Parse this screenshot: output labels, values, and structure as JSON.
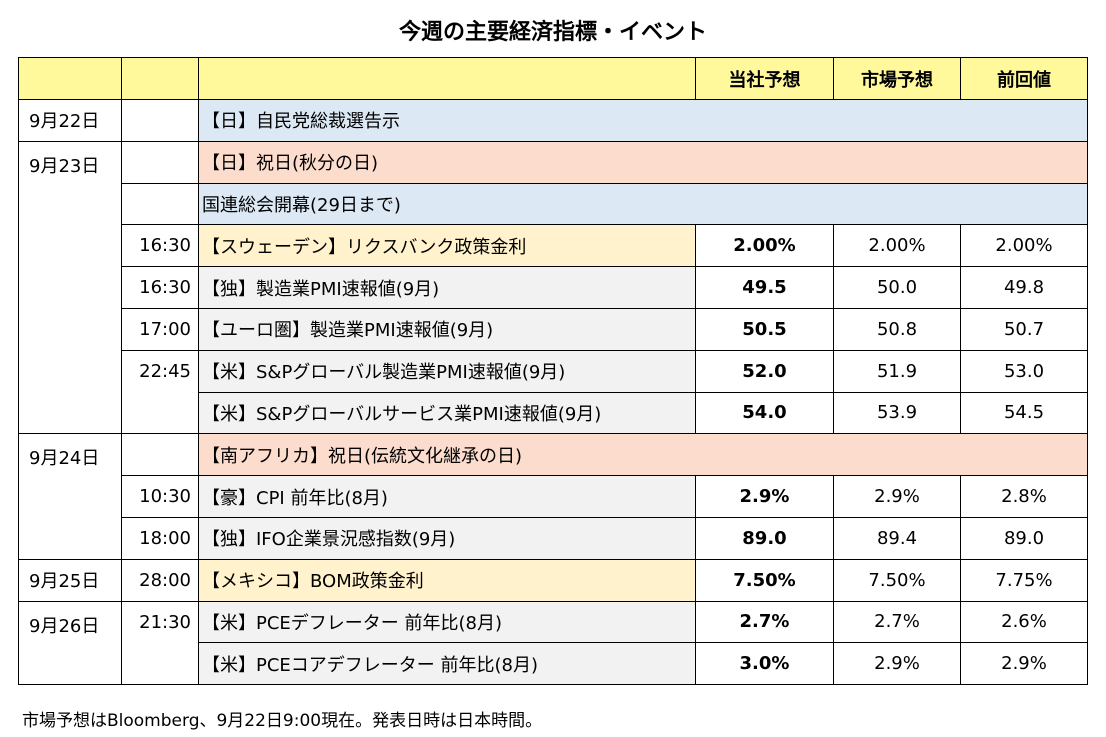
{
  "title": "今週の主要経済指標・イベント",
  "headers": {
    "ours": "当社予想",
    "market": "市場予想",
    "previous": "前回値"
  },
  "rows": [
    {
      "date": "9月22日",
      "time": "",
      "event": "【日】自民党総裁選告示",
      "ours": "",
      "market": "",
      "previous": ""
    },
    {
      "date": "9月23日",
      "time": "",
      "event": "【日】祝日(秋分の日)",
      "ours": "",
      "market": "",
      "previous": ""
    },
    {
      "date": "",
      "time": "",
      "event": "国連総会開幕(29日まで)",
      "ours": "",
      "market": "",
      "previous": ""
    },
    {
      "date": "",
      "time": "16:30",
      "event": "【スウェーデン】リクスバンク政策金利",
      "ours": "2.00%",
      "market": "2.00%",
      "previous": "2.00%"
    },
    {
      "date": "",
      "time": "16:30",
      "event": "【独】製造業PMI速報値(9月)",
      "ours": "49.5",
      "market": "50.0",
      "previous": "49.8"
    },
    {
      "date": "",
      "time": "17:00",
      "event": "【ユーロ圏】製造業PMI速報値(9月)",
      "ours": "50.5",
      "market": "50.8",
      "previous": "50.7"
    },
    {
      "date": "",
      "time": "22:45",
      "event": "【米】S&Pグローバル製造業PMI速報値(9月)",
      "ours": "52.0",
      "market": "51.9",
      "previous": "53.0"
    },
    {
      "date": "",
      "time": "",
      "event": "【米】S&Pグローバルサービス業PMI速報値(9月)",
      "ours": "54.0",
      "market": "53.9",
      "previous": "54.5"
    },
    {
      "date": "9月24日",
      "time": "",
      "event": "【南アフリカ】祝日(伝統文化継承の日)",
      "ours": "",
      "market": "",
      "previous": ""
    },
    {
      "date": "",
      "time": "10:30",
      "event": "【豪】CPI 前年比(8月)",
      "ours": "2.9%",
      "market": "2.9%",
      "previous": "2.8%"
    },
    {
      "date": "",
      "time": "18:00",
      "event": "【独】IFO企業景況感指数(9月)",
      "ours": "89.0",
      "market": "89.4",
      "previous": "89.0"
    },
    {
      "date": "9月25日",
      "time": "28:00",
      "event": "【メキシコ】BOM政策金利",
      "ours": "7.50%",
      "market": "7.50%",
      "previous": "7.75%"
    },
    {
      "date": "9月26日",
      "time": "21:30",
      "event": "【米】PCEデフレーター 前年比(8月)",
      "ours": "2.7%",
      "market": "2.7%",
      "previous": "2.6%"
    },
    {
      "date": "",
      "time": "",
      "event": "【米】PCEコアデフレーター 前年比(8月)",
      "ours": "3.0%",
      "market": "2.9%",
      "previous": "2.9%"
    }
  ],
  "footnote": "市場予想はBloomberg、9月22日9:00現在。発表日時は日本時間。",
  "colors": {
    "header": "#fff99c",
    "blue": "#dce9f5",
    "peach": "#fbdccd",
    "cream": "#fff2cc",
    "grey": "#f2f2f2"
  }
}
